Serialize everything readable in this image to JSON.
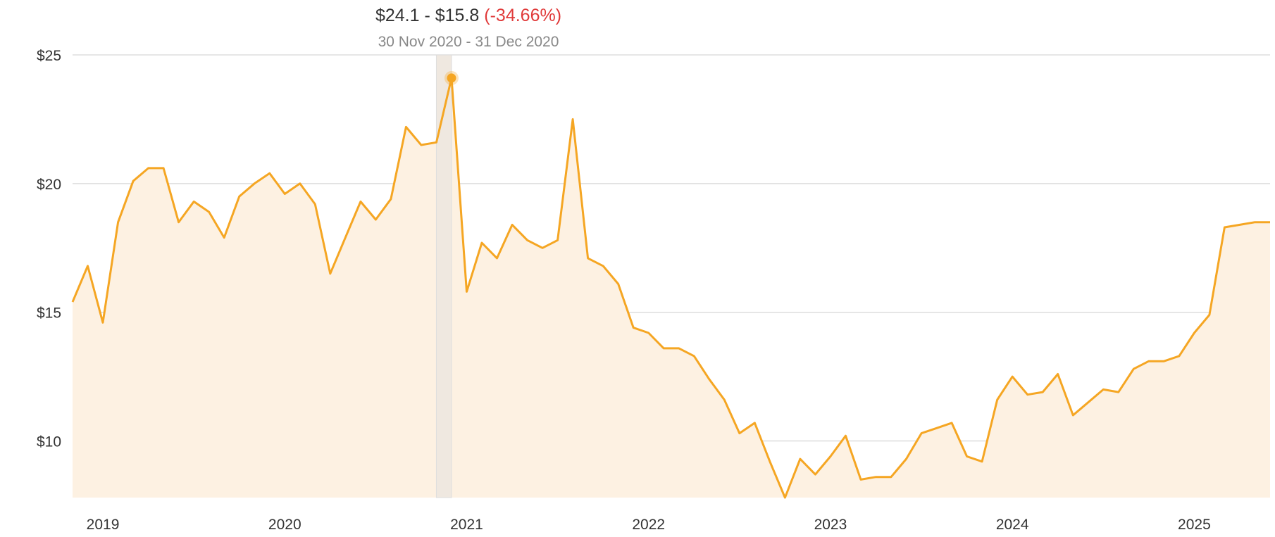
{
  "tooltip": {
    "range": "$24.1 - $15.8",
    "change": "(-34.66%)",
    "dates": "30 Nov 2020 - 31 Dec 2020"
  },
  "colors": {
    "line": "#f5a623",
    "fill": "#fdf1e2",
    "grid": "#dddddd",
    "highlight_band": "#efe8e0",
    "negative": "#e03a3a"
  },
  "chart_data": {
    "type": "area",
    "title": "",
    "xlabel": "",
    "ylabel": "",
    "ylim": [
      7.8,
      25
    ],
    "xlim": [
      "2018-11",
      "2025-06"
    ],
    "y_ticks": [
      {
        "value": 25,
        "label": "$25"
      },
      {
        "value": 20,
        "label": "$20"
      },
      {
        "value": 15,
        "label": "$15"
      },
      {
        "value": 10,
        "label": "$10"
      }
    ],
    "x_ticks": [
      {
        "value": "2019-01",
        "label": "2019"
      },
      {
        "value": "2020-01",
        "label": "2020"
      },
      {
        "value": "2021-01",
        "label": "2021"
      },
      {
        "value": "2022-01",
        "label": "2022"
      },
      {
        "value": "2023-01",
        "label": "2023"
      },
      {
        "value": "2024-01",
        "label": "2024"
      },
      {
        "value": "2025-01",
        "label": "2025"
      }
    ],
    "grid": true,
    "highlight": {
      "from": "2020-11",
      "to": "2020-12",
      "point": "2020-12"
    },
    "series": [
      {
        "x": [
          "2018-11",
          "2018-12",
          "2019-01",
          "2019-02",
          "2019-03",
          "2019-04",
          "2019-05",
          "2019-06",
          "2019-07",
          "2019-08",
          "2019-09",
          "2019-10",
          "2019-11",
          "2019-12",
          "2020-01",
          "2020-02",
          "2020-03",
          "2020-04",
          "2020-05",
          "2020-06",
          "2020-07",
          "2020-08",
          "2020-09",
          "2020-10",
          "2020-11",
          "2020-12",
          "2021-01",
          "2021-02",
          "2021-03",
          "2021-04",
          "2021-05",
          "2021-06",
          "2021-07",
          "2021-08",
          "2021-09",
          "2021-10",
          "2021-11",
          "2021-12",
          "2022-01",
          "2022-02",
          "2022-03",
          "2022-04",
          "2022-05",
          "2022-06",
          "2022-07",
          "2022-08",
          "2022-09",
          "2022-10",
          "2022-11",
          "2022-12",
          "2023-01",
          "2023-02",
          "2023-03",
          "2023-04",
          "2023-05",
          "2023-06",
          "2023-07",
          "2023-08",
          "2023-09",
          "2023-10",
          "2023-11",
          "2023-12",
          "2024-01",
          "2024-02",
          "2024-03",
          "2024-04",
          "2024-05",
          "2024-06",
          "2024-07",
          "2024-08",
          "2024-09",
          "2024-10",
          "2024-11",
          "2024-12",
          "2025-01",
          "2025-02",
          "2025-03",
          "2025-04",
          "2025-05",
          "2025-06"
        ],
        "values": [
          15.4,
          16.8,
          14.6,
          18.5,
          20.1,
          20.6,
          20.6,
          18.5,
          19.3,
          18.9,
          17.9,
          19.5,
          20.0,
          20.4,
          19.6,
          20.0,
          19.2,
          16.5,
          17.9,
          19.3,
          18.6,
          19.4,
          22.2,
          21.5,
          21.6,
          24.1,
          15.8,
          17.7,
          17.1,
          18.4,
          17.8,
          17.5,
          17.8,
          22.5,
          17.1,
          16.8,
          16.1,
          14.4,
          14.2,
          13.6,
          13.6,
          13.3,
          12.4,
          11.6,
          10.3,
          10.7,
          9.2,
          7.8,
          9.3,
          8.7,
          9.4,
          10.2,
          8.5,
          8.6,
          8.6,
          9.3,
          10.3,
          10.5,
          10.7,
          9.4,
          9.2,
          11.6,
          12.5,
          11.8,
          11.9,
          12.6,
          11.0,
          11.5,
          12.0,
          11.9,
          12.8,
          13.1,
          13.1,
          13.3,
          14.2,
          14.9,
          18.3,
          18.4,
          18.5,
          18.5
        ]
      }
    ]
  }
}
